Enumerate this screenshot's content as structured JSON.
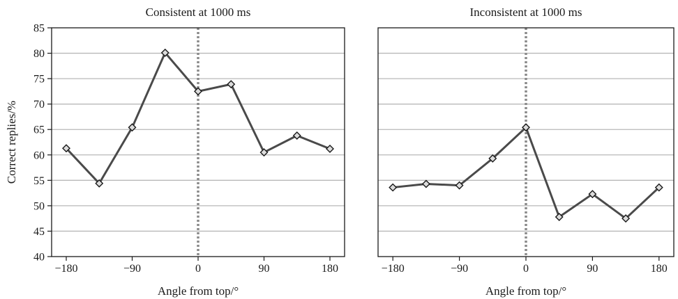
{
  "chart_data": [
    {
      "type": "line",
      "title": "Consistent at 1000 ms",
      "xlabel": "Angle from top/°",
      "ylabel": "Correct replies/%",
      "x": [
        -180,
        -135,
        -90,
        -45,
        0,
        45,
        90,
        135,
        180
      ],
      "series": [
        {
          "values": [
            61.3,
            54.4,
            65.4,
            80.1,
            72.5,
            73.9,
            60.5,
            63.8,
            61.2
          ]
        }
      ],
      "xticks": [
        "−180",
        "−90",
        "0",
        "90",
        "180"
      ],
      "xtick_values": [
        -180,
        -90,
        0,
        90,
        180
      ],
      "yticks": [
        "40",
        "45",
        "50",
        "55",
        "60",
        "65",
        "70",
        "75",
        "80",
        "85"
      ],
      "ylim": [
        40,
        85
      ],
      "xlim": [
        -200,
        200
      ],
      "grid": "horizontal",
      "reference_line": {
        "x": 0,
        "style": "dotted"
      },
      "marker": "diamond"
    },
    {
      "type": "line",
      "title": "Inconsistent at 1000 ms",
      "xlabel": "Angle from top/°",
      "ylabel": "",
      "x": [
        -180,
        -135,
        -90,
        -45,
        0,
        45,
        90,
        135,
        180
      ],
      "series": [
        {
          "values": [
            53.6,
            54.3,
            54.0,
            59.3,
            65.4,
            47.8,
            52.3,
            47.5,
            53.6
          ]
        }
      ],
      "xticks": [
        "−180",
        "−90",
        "0",
        "90",
        "180"
      ],
      "xtick_values": [
        -180,
        -90,
        0,
        90,
        180
      ],
      "yticks": [],
      "ylim": [
        40,
        85
      ],
      "xlim": [
        -200,
        200
      ],
      "grid": "horizontal",
      "reference_line": {
        "x": 0,
        "style": "dotted"
      },
      "marker": "diamond"
    }
  ],
  "colors": {
    "line": "#4a4a4a",
    "marker_fill": "#dcdcdc",
    "grid": "#b8b8b8",
    "reference_line": "#8a8a8a",
    "frame": "#1a1a1a"
  }
}
